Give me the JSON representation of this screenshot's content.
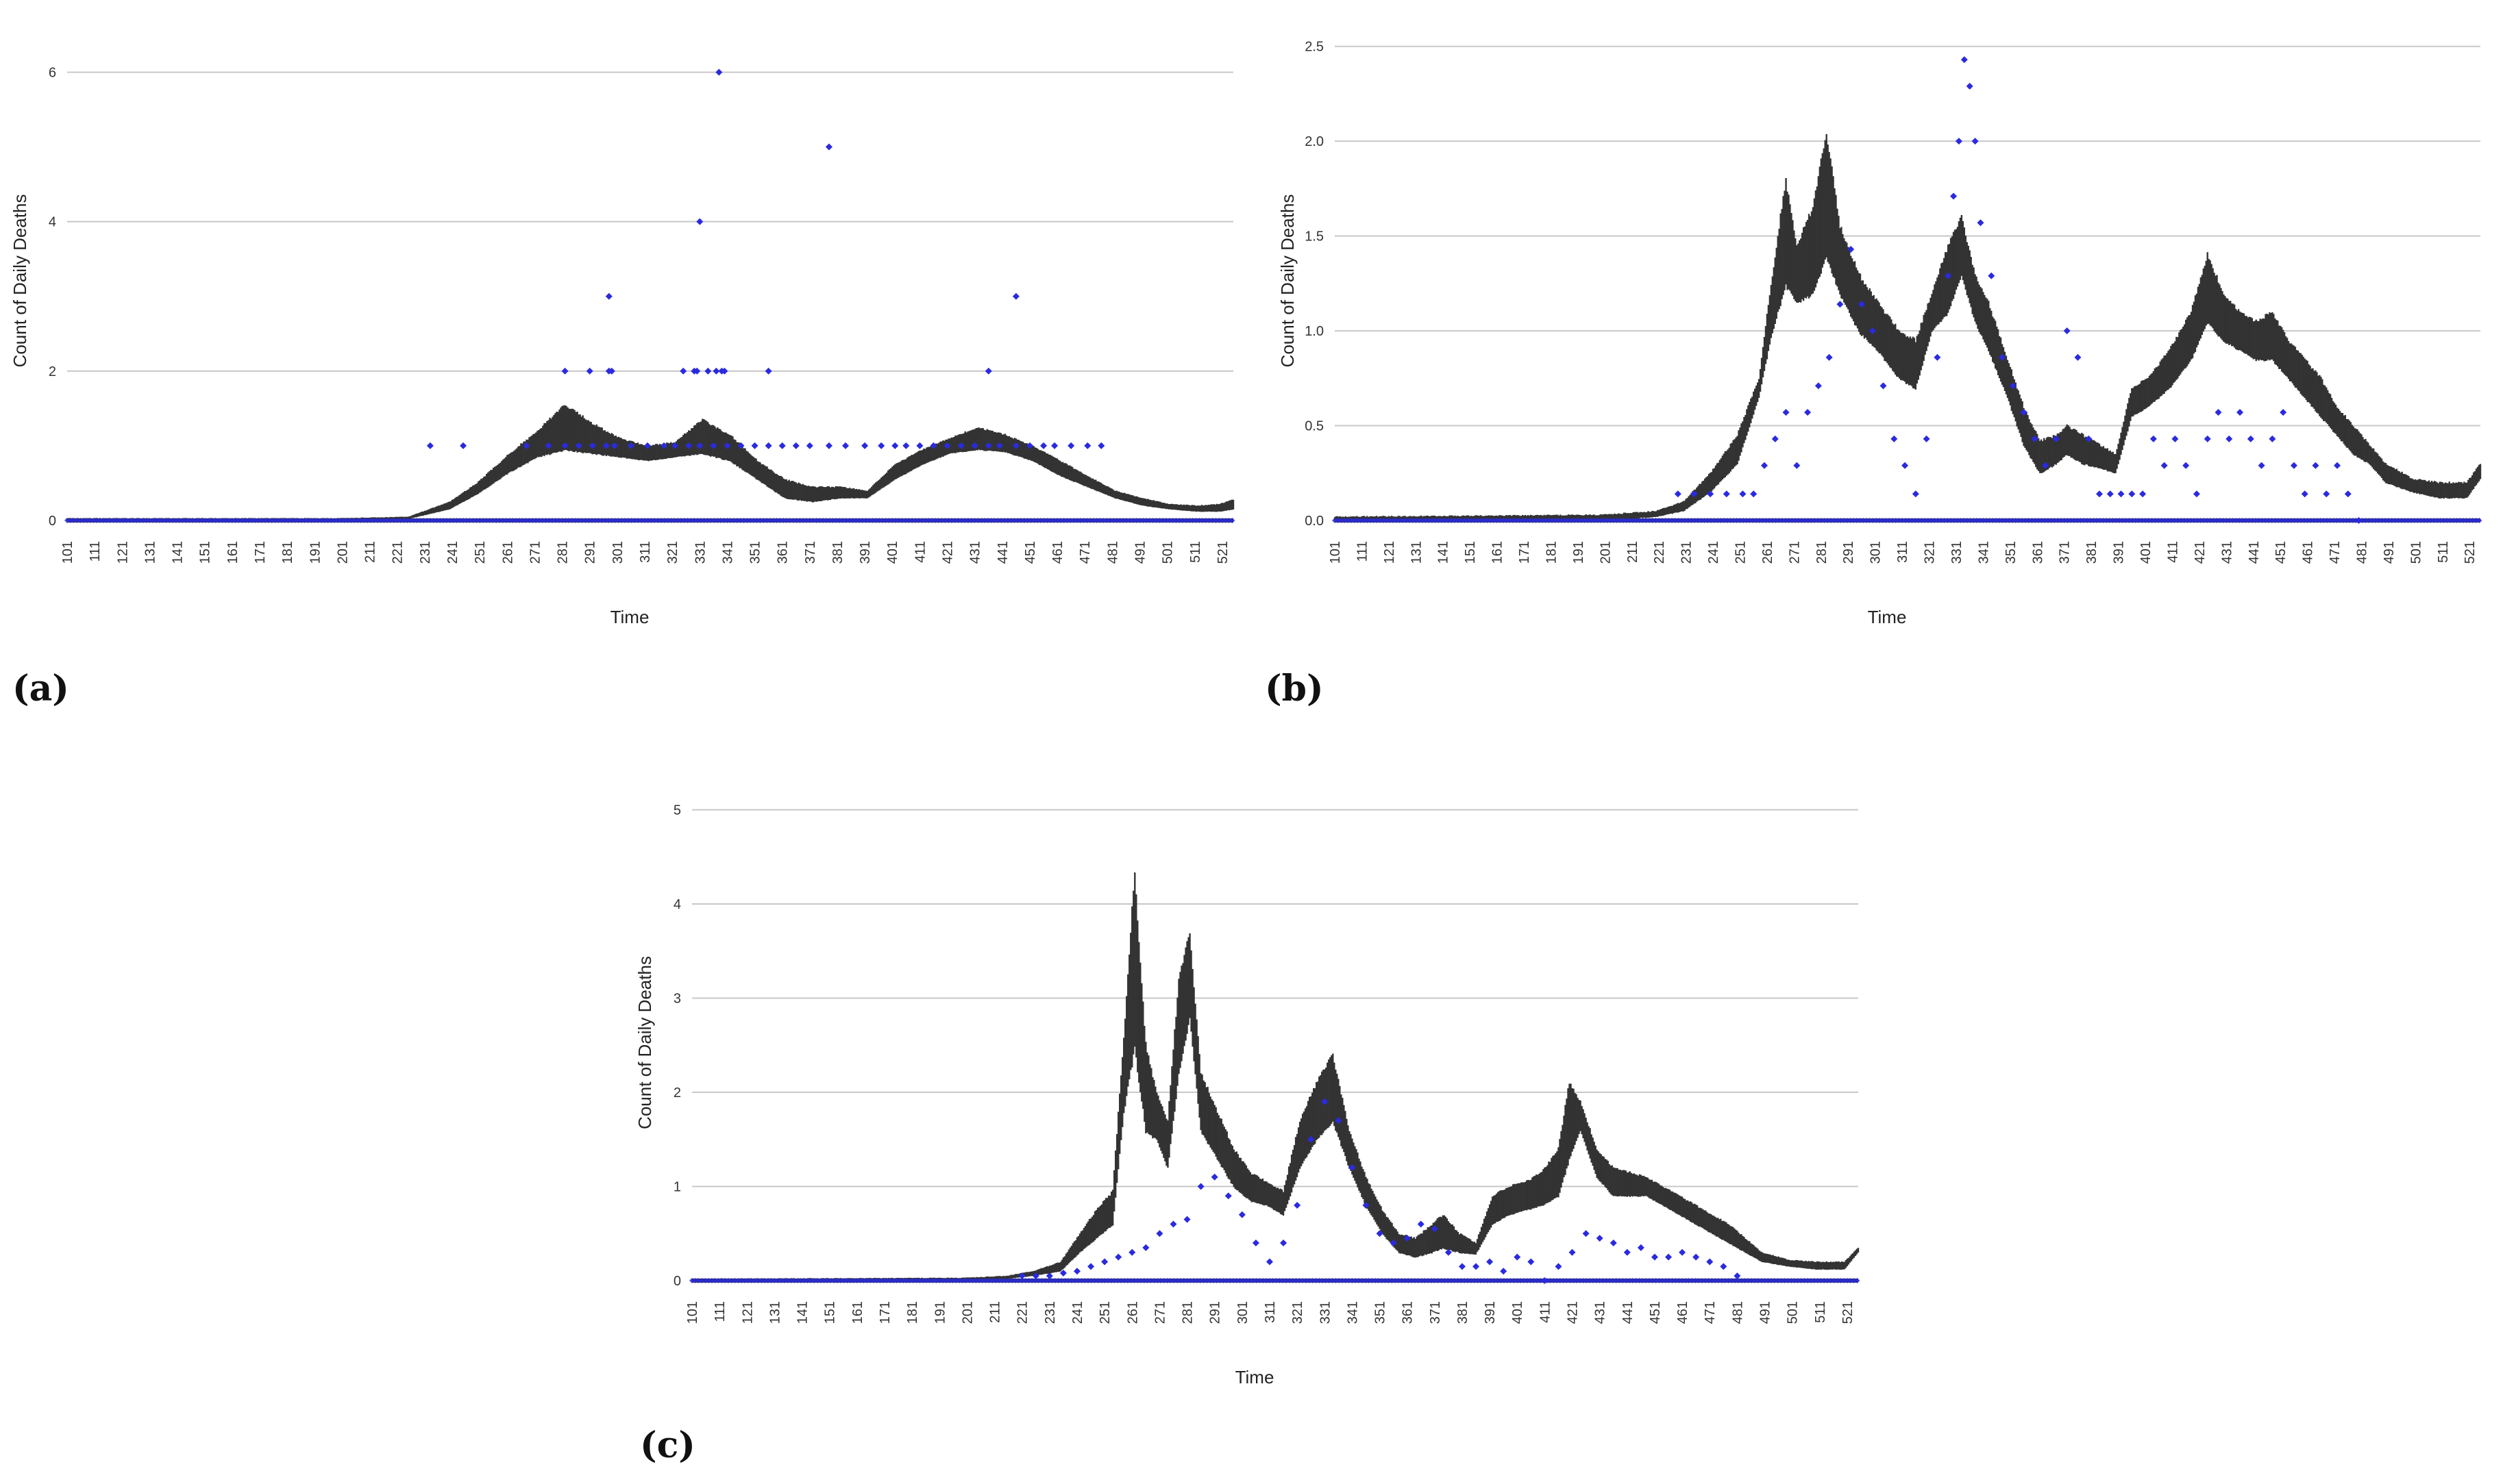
{
  "colors": {
    "band": "#333333",
    "points": "#2a2ae0",
    "grid": "#c8c8c8"
  },
  "chart_data": [
    {
      "type": "scatter",
      "panel_label": "(a)",
      "xlabel": "Time",
      "ylabel": "Count of Daily Deaths",
      "xlim": [
        101,
        525
      ],
      "ylim": [
        0,
        6.6
      ],
      "yticks": [
        "0",
        "2",
        "4",
        "6"
      ],
      "ytick_values": [
        0,
        2,
        4,
        6
      ],
      "xticks": [
        101,
        111,
        121,
        131,
        141,
        151,
        161,
        171,
        181,
        191,
        201,
        211,
        221,
        231,
        241,
        251,
        261,
        271,
        281,
        291,
        301,
        311,
        321,
        331,
        341,
        351,
        361,
        371,
        381,
        391,
        401,
        411,
        421,
        431,
        441,
        451,
        461,
        471,
        481,
        491,
        501,
        511,
        521
      ],
      "xtick_labels": [
        "101",
        "111",
        "121",
        "131",
        "141",
        "151",
        "161",
        "171",
        "181",
        "191",
        "201",
        "211",
        "221",
        "231",
        "241",
        "251",
        "261",
        "271",
        "281",
        "291",
        "301",
        "311",
        "321",
        "331",
        "341",
        "351",
        "361",
        "371",
        "381",
        "391",
        "401",
        "411",
        "421",
        "431",
        "441",
        "451",
        "461",
        "471",
        "481",
        "491",
        "501",
        "511",
        "521"
      ],
      "series": [
        {
          "kind": "band",
          "x": [
            101,
            200,
            225,
            240,
            250,
            262,
            272,
            282,
            292,
            302,
            312,
            322,
            332,
            342,
            352,
            362,
            372,
            382,
            392,
            402,
            412,
            422,
            432,
            442,
            452,
            462,
            472,
            482,
            492,
            502,
            512,
            520,
            525
          ],
          "lower": [
            0,
            0,
            0.02,
            0.15,
            0.35,
            0.65,
            0.85,
            0.95,
            0.9,
            0.85,
            0.8,
            0.85,
            0.9,
            0.8,
            0.55,
            0.3,
            0.25,
            0.3,
            0.3,
            0.55,
            0.75,
            0.9,
            0.95,
            0.92,
            0.8,
            0.6,
            0.45,
            0.3,
            0.2,
            0.15,
            0.12,
            0.12,
            0.15
          ],
          "upper": [
            0.03,
            0.03,
            0.05,
            0.25,
            0.5,
            0.9,
            1.2,
            1.55,
            1.3,
            1.1,
            1.0,
            1.05,
            1.35,
            1.15,
            0.8,
            0.55,
            0.45,
            0.45,
            0.4,
            0.75,
            0.95,
            1.1,
            1.25,
            1.15,
            1.0,
            0.8,
            0.6,
            0.4,
            0.3,
            0.22,
            0.2,
            0.22,
            0.28
          ]
        },
        {
          "kind": "points",
          "name": "",
          "x": [
            233,
            245,
            268,
            276,
            282,
            287,
            292,
            297,
            300,
            306,
            312,
            318,
            322,
            327,
            331,
            336,
            341,
            346,
            351,
            356,
            361,
            366,
            371,
            378,
            384,
            391,
            397,
            402,
            406,
            411,
            416,
            421,
            426,
            431,
            436,
            440,
            446,
            451,
            456,
            460,
            466,
            472,
            477,
            282,
            291,
            298,
            299,
            325,
            329,
            330,
            334,
            337,
            339,
            340,
            356,
            436,
            378,
            331,
            338,
            298,
            446
          ],
          "y": [
            1,
            1,
            1,
            1,
            1,
            1,
            1,
            1,
            1,
            1,
            1,
            1,
            1,
            1,
            1,
            1,
            1,
            1,
            1,
            1,
            1,
            1,
            1,
            1,
            1,
            1,
            1,
            1,
            1,
            1,
            1,
            1,
            1,
            1,
            1,
            1,
            1,
            1,
            1,
            1,
            1,
            1,
            1,
            2,
            2,
            2,
            2,
            2,
            2,
            2,
            2,
            2,
            2,
            2,
            2,
            2,
            5,
            4,
            6,
            3,
            3
          ]
        }
      ]
    },
    {
      "type": "scatter",
      "panel_label": "(b)",
      "xlabel": "Time",
      "ylabel": "Count of Daily Deaths",
      "xlim": [
        101,
        525
      ],
      "ylim": [
        0,
        2.6
      ],
      "yticks": [
        "0.0",
        "0.5",
        "1.0",
        "1.5",
        "2.0",
        "2.5"
      ],
      "ytick_values": [
        0,
        0.5,
        1.0,
        1.5,
        2.0,
        2.5
      ],
      "xticks": [
        101,
        111,
        121,
        131,
        141,
        151,
        161,
        171,
        181,
        191,
        201,
        211,
        221,
        231,
        241,
        251,
        261,
        271,
        281,
        291,
        301,
        311,
        321,
        331,
        341,
        351,
        361,
        371,
        381,
        391,
        401,
        411,
        421,
        431,
        441,
        451,
        461,
        471,
        481,
        491,
        501,
        511,
        521
      ],
      "xtick_labels": [
        "101",
        "111",
        "121",
        "131",
        "141",
        "151",
        "161",
        "171",
        "181",
        "191",
        "201",
        "211",
        "221",
        "231",
        "241",
        "251",
        "261",
        "271",
        "281",
        "291",
        "301",
        "311",
        "321",
        "331",
        "341",
        "351",
        "361",
        "371",
        "381",
        "391",
        "401",
        "411",
        "421",
        "431",
        "441",
        "451",
        "461",
        "471",
        "481",
        "491",
        "501",
        "511",
        "521"
      ],
      "series": [
        {
          "kind": "band",
          "x": [
            101,
            200,
            220,
            230,
            240,
            250,
            258,
            263,
            268,
            272,
            278,
            283,
            288,
            295,
            302,
            310,
            316,
            322,
            328,
            333,
            338,
            343,
            350,
            356,
            362,
            368,
            372,
            378,
            384,
            390,
            396,
            402,
            410,
            418,
            424,
            430,
            436,
            442,
            448,
            454,
            460,
            466,
            472,
            478,
            484,
            490,
            500,
            510,
            520,
            525
          ],
          "lower": [
            0,
            0,
            0.02,
            0.05,
            0.15,
            0.3,
            0.65,
            1.0,
            1.25,
            1.15,
            1.2,
            1.4,
            1.2,
            1.0,
            0.9,
            0.75,
            0.7,
            1.0,
            1.1,
            1.3,
            1.05,
            0.9,
            0.65,
            0.4,
            0.25,
            0.3,
            0.35,
            0.3,
            0.28,
            0.25,
            0.55,
            0.6,
            0.7,
            0.85,
            1.05,
            0.95,
            0.9,
            0.85,
            0.85,
            0.75,
            0.65,
            0.55,
            0.45,
            0.35,
            0.3,
            0.2,
            0.15,
            0.12,
            0.12,
            0.22
          ],
          "upper": [
            0.02,
            0.03,
            0.05,
            0.1,
            0.25,
            0.45,
            0.75,
            1.3,
            1.8,
            1.45,
            1.65,
            2.05,
            1.55,
            1.3,
            1.15,
            1.0,
            0.95,
            1.2,
            1.45,
            1.6,
            1.3,
            1.15,
            0.85,
            0.6,
            0.42,
            0.45,
            0.5,
            0.45,
            0.4,
            0.35,
            0.7,
            0.75,
            0.9,
            1.1,
            1.4,
            1.2,
            1.1,
            1.05,
            1.1,
            0.95,
            0.85,
            0.75,
            0.6,
            0.5,
            0.4,
            0.3,
            0.22,
            0.2,
            0.2,
            0.3
          ]
        },
        {
          "kind": "points",
          "name": "",
          "x": [
            228,
            234,
            240,
            246,
            252,
            256,
            260,
            264,
            268,
            272,
            276,
            280,
            284,
            288,
            292,
            296,
            300,
            304,
            308,
            312,
            316,
            320,
            324,
            328,
            330,
            332,
            334,
            336,
            338,
            340,
            344,
            348,
            352,
            356,
            360,
            364,
            368,
            372,
            376,
            380,
            384,
            388,
            392,
            396,
            400,
            404,
            408,
            412,
            416,
            420,
            424,
            428,
            432,
            436,
            440,
            444,
            448,
            452,
            456,
            460,
            464,
            468,
            472,
            476,
            480
          ],
          "y": [
            0.14,
            0.14,
            0.14,
            0.14,
            0.14,
            0.14,
            0.29,
            0.43,
            0.57,
            0.29,
            0.57,
            0.71,
            0.86,
            1.14,
            1.43,
            1.14,
            1.0,
            0.71,
            0.43,
            0.29,
            0.14,
            0.43,
            0.86,
            1.29,
            1.71,
            2.0,
            2.43,
            2.29,
            2.0,
            1.57,
            1.29,
            0.86,
            0.71,
            0.57,
            0.43,
            0.29,
            0.43,
            1.0,
            0.86,
            0.43,
            0.14,
            0.14,
            0.14,
            0.14,
            0.14,
            0.43,
            0.29,
            0.43,
            0.29,
            0.14,
            0.43,
            0.57,
            0.43,
            0.57,
            0.43,
            0.29,
            0.43,
            0.57,
            0.29,
            0.14,
            0.29,
            0.14,
            0.29,
            0.14,
            0.0
          ]
        }
      ]
    },
    {
      "type": "scatter",
      "panel_label": "(c)",
      "xlabel": "Time",
      "ylabel": "Count of Daily Deaths",
      "xlim": [
        101,
        525
      ],
      "ylim": [
        0,
        5.2
      ],
      "yticks": [
        "0",
        "1",
        "2",
        "3",
        "4",
        "5"
      ],
      "ytick_values": [
        0,
        1,
        2,
        3,
        4,
        5
      ],
      "xticks": [
        101,
        111,
        121,
        131,
        141,
        151,
        161,
        171,
        181,
        191,
        201,
        211,
        221,
        231,
        241,
        251,
        261,
        271,
        281,
        291,
        301,
        311,
        321,
        331,
        341,
        351,
        361,
        371,
        381,
        391,
        401,
        411,
        421,
        431,
        441,
        451,
        461,
        471,
        481,
        491,
        501,
        511,
        521
      ],
      "xtick_labels": [
        "101",
        "111",
        "121",
        "131",
        "141",
        "151",
        "161",
        "171",
        "181",
        "191",
        "201",
        "211",
        "221",
        "231",
        "241",
        "251",
        "261",
        "271",
        "281",
        "291",
        "301",
        "311",
        "321",
        "331",
        "341",
        "351",
        "361",
        "371",
        "381",
        "391",
        "401",
        "411",
        "421",
        "431",
        "441",
        "451",
        "461",
        "471",
        "481",
        "491",
        "501",
        "511",
        "521"
      ],
      "series": [
        {
          "kind": "band",
          "x": [
            101,
            200,
            215,
            225,
            235,
            242,
            248,
            254,
            258,
            262,
            266,
            270,
            274,
            278,
            282,
            286,
            292,
            298,
            304,
            310,
            316,
            322,
            328,
            334,
            340,
            346,
            352,
            358,
            364,
            370,
            374,
            380,
            386,
            392,
            398,
            404,
            410,
            416,
            420,
            424,
            430,
            436,
            442,
            448,
            454,
            460,
            466,
            472,
            478,
            484,
            490,
            500,
            510,
            520,
            525
          ],
          "lower": [
            0,
            0,
            0.02,
            0.05,
            0.1,
            0.3,
            0.45,
            0.6,
            1.8,
            2.5,
            1.6,
            1.5,
            1.2,
            2.2,
            2.8,
            1.6,
            1.3,
            1.0,
            0.85,
            0.8,
            0.7,
            1.2,
            1.5,
            1.7,
            1.2,
            0.8,
            0.5,
            0.3,
            0.25,
            0.3,
            0.35,
            0.3,
            0.28,
            0.6,
            0.7,
            0.75,
            0.8,
            0.9,
            1.3,
            1.6,
            1.1,
            0.9,
            0.9,
            0.9,
            0.8,
            0.7,
            0.6,
            0.5,
            0.4,
            0.3,
            0.2,
            0.15,
            0.12,
            0.12,
            0.3
          ],
          "upper": [
            0.02,
            0.03,
            0.05,
            0.1,
            0.2,
            0.5,
            0.75,
            0.95,
            2.6,
            4.35,
            2.5,
            2.0,
            1.7,
            3.2,
            3.7,
            2.2,
            1.8,
            1.4,
            1.15,
            1.05,
            0.95,
            1.7,
            2.1,
            2.4,
            1.6,
            1.1,
            0.75,
            0.5,
            0.45,
            0.6,
            0.7,
            0.5,
            0.4,
            0.9,
            1.0,
            1.05,
            1.15,
            1.4,
            2.1,
            1.9,
            1.4,
            1.2,
            1.15,
            1.1,
            1.0,
            0.9,
            0.8,
            0.7,
            0.6,
            0.45,
            0.3,
            0.22,
            0.2,
            0.2,
            0.35
          ]
        },
        {
          "kind": "points",
          "name": "",
          "x": [
            221,
            226,
            231,
            236,
            241,
            246,
            251,
            256,
            261,
            266,
            271,
            276,
            281,
            286,
            291,
            296,
            301,
            306,
            311,
            316,
            321,
            326,
            331,
            336,
            341,
            346,
            351,
            356,
            361,
            366,
            371,
            376,
            381,
            386,
            391,
            396,
            401,
            406,
            411,
            416,
            421,
            426,
            431,
            436,
            441,
            446,
            451,
            456,
            461,
            466,
            471,
            476,
            481
          ],
          "y": [
            0.05,
            0.05,
            0.05,
            0.08,
            0.1,
            0.15,
            0.2,
            0.25,
            0.3,
            0.35,
            0.5,
            0.6,
            0.65,
            1.0,
            1.1,
            0.9,
            0.7,
            0.4,
            0.2,
            0.4,
            0.8,
            1.5,
            1.9,
            1.7,
            1.2,
            0.8,
            0.5,
            0.4,
            0.45,
            0.6,
            0.55,
            0.3,
            0.15,
            0.15,
            0.2,
            0.1,
            0.25,
            0.2,
            0.0,
            0.15,
            0.3,
            0.5,
            0.45,
            0.4,
            0.3,
            0.35,
            0.25,
            0.25,
            0.3,
            0.25,
            0.2,
            0.15,
            0.05
          ]
        }
      ]
    }
  ]
}
